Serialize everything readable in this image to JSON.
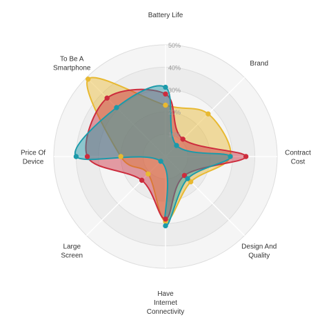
{
  "chart_data": {
    "type": "radar",
    "axes": [
      [
        "Battery Life"
      ],
      [
        "Brand"
      ],
      [
        "Contract",
        "Cost"
      ],
      [
        "Design And",
        "Quality"
      ],
      [
        "Have",
        "Internet",
        "Connectivity"
      ],
      [
        "Large",
        "Screen"
      ],
      [
        "Price Of",
        "Device"
      ],
      [
        "To Be A",
        "Smartphone"
      ]
    ],
    "rlim": [
      0,
      50
    ],
    "ticks": [
      "10%",
      "20%",
      "30%",
      "40%",
      "50%"
    ],
    "grid": true,
    "legend": "none",
    "series": [
      {
        "color": "#e8b931",
        "values": [
          23,
          27,
          29,
          16,
          29,
          11,
          20,
          49
        ]
      },
      {
        "color": "#cd2c3d",
        "values": [
          28,
          11,
          36,
          12,
          28,
          15,
          35,
          37
        ]
      },
      {
        "color": "#1b9aaa",
        "values": [
          31,
          7,
          29,
          14,
          31,
          3,
          40,
          31
        ]
      }
    ]
  }
}
